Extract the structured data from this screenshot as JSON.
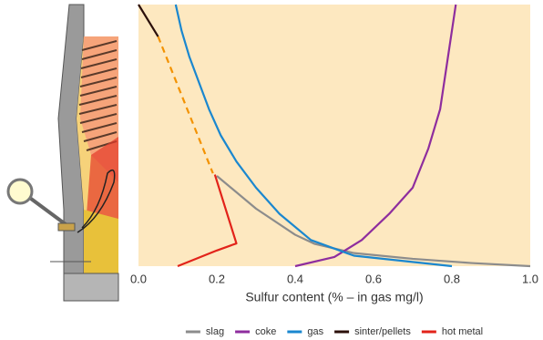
{
  "chart_data": {
    "type": "line",
    "x_label": "Sulfur content (% – in gas mg/l)",
    "xlim": [
      0,
      1
    ],
    "ylim": [
      0,
      100
    ],
    "xticks": [
      {
        "value": 0,
        "label": "0.0"
      },
      0.2,
      0.4,
      0.6,
      0.8,
      {
        "value": 1,
        "label": "1.0"
      }
    ],
    "background": "#fde8c0",
    "series": [
      {
        "name": "slag",
        "color": "#8c8c8c",
        "x": [
          0.2,
          0.3,
          0.4,
          0.45,
          0.55,
          0.7,
          0.85,
          1.0
        ],
        "values": [
          34.5,
          22,
          12,
          8.5,
          5,
          2.8,
          1.2,
          0
        ]
      },
      {
        "name": "coke",
        "color": "#8e2d9e",
        "x": [
          0.4,
          0.5,
          0.57,
          0.64,
          0.7,
          0.74,
          0.77,
          0.79,
          0.81
        ],
        "values": [
          0,
          3.5,
          10,
          20,
          30,
          45,
          60,
          80,
          100
        ]
      },
      {
        "name": "gas",
        "color": "#1a87cf",
        "x": [
          0.095,
          0.11,
          0.13,
          0.155,
          0.18,
          0.21,
          0.25,
          0.3,
          0.36,
          0.44,
          0.55,
          0.8
        ],
        "values": [
          100,
          90,
          80,
          70,
          60,
          50,
          40,
          30,
          20,
          10,
          4,
          0
        ]
      },
      {
        "name": "sinter/pellets",
        "color": "#2b0f0a",
        "x": [
          0,
          0.05
        ],
        "values": [
          100,
          87.8
        ]
      },
      {
        "name": "hot metal",
        "color": "#e2231a",
        "x": [
          0.195,
          0.25,
          0.2,
          0.1
        ],
        "values": [
          35,
          8.7,
          6,
          0
        ]
      }
    ],
    "dashed_line": {
      "color": "#f39200",
      "x": [
        0.05,
        0.19
      ],
      "values": [
        87.8,
        35.5
      ]
    },
    "legend_position": "bottom"
  }
}
